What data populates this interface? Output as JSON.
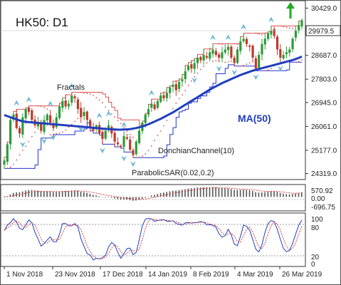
{
  "chart_data": {
    "type": "candlestick",
    "title": "HK50: D1",
    "colors": {
      "up": "#2e9b3a",
      "down": "#c0392b",
      "ma": "#1f3fbf",
      "donchian": "#2233cc",
      "sar": "#e05050",
      "fractal": "#6fb8d8",
      "macd": "#555555",
      "signal": "#d04040",
      "stoch_k": "#1f3fbf",
      "stoch_d": "#d04040",
      "price_box": "#ffffff"
    },
    "x_ticks": [
      "1 Nov 2018",
      "23 Nov 2018",
      "17 Dec 2018",
      "14 Jan 2019",
      "8 Feb 2019",
      "4 Mar 2019",
      "26 Mar 2019"
    ],
    "y_ticks": [
      30429.0,
      29571.0,
      28687.0,
      27803.0,
      26945.0,
      26061.0,
      25177.0,
      24319.0
    ],
    "ylim": [
      24150,
      30650
    ],
    "current_price": 29979.5,
    "current_price_label": "29979.5",
    "annotations": {
      "fractals": "Fractals",
      "donchian": "DonchianChannel(10)",
      "sar": "ParabolicSAR(0.02,0.2)",
      "ma": "MA(50)"
    },
    "macd_ticks": [
      "570.92",
      "0.00",
      "-696.75"
    ],
    "macd_ylim": [
      -800,
      700
    ],
    "stoch_ticks": [
      "100",
      "80",
      "20",
      "0"
    ],
    "stoch_ylim": [
      0,
      100
    ],
    "close": [
      24800,
      25400,
      26300,
      26500,
      26000,
      25800,
      26400,
      26700,
      26600,
      26300,
      26100,
      26200,
      25900,
      26300,
      26500,
      26200,
      26000,
      26400,
      26800,
      27000,
      26800,
      26900,
      27200,
      27100,
      26700,
      26400,
      26600,
      26300,
      26000,
      25900,
      26100,
      25800,
      25600,
      25900,
      26100,
      25800,
      25500,
      25400,
      25300,
      25700,
      25600,
      25200,
      25000,
      25500,
      25900,
      26200,
      26500,
      26700,
      26900,
      26700,
      27000,
      27200,
      27100,
      27300,
      27500,
      27600,
      27400,
      27700,
      27800,
      28100,
      28300,
      28200,
      28400,
      28600,
      28500,
      28700,
      28600,
      28800,
      28900,
      28700,
      28600,
      28800,
      28900,
      29000,
      28600,
      28400,
      28900,
      29200,
      29300,
      29100,
      29000,
      28600,
      28200,
      28700,
      29100,
      29300,
      29500,
      29600,
      29400,
      28900,
      28600,
      28700,
      28800,
      28900,
      29300,
      29600,
      29800,
      29979.5
    ],
    "ma50": [
      26480,
      26440,
      26400,
      26360,
      26320,
      26280,
      26250,
      26230,
      26220,
      26210,
      26200,
      26190,
      26180,
      26170,
      26160,
      26150,
      26140,
      26130,
      26120,
      26110,
      26100,
      26090,
      26080,
      26070,
      26060,
      26050,
      26040,
      26030,
      26020,
      26010,
      26000,
      25990,
      25980,
      25970,
      25960,
      25950,
      25950,
      25940,
      25940,
      25950,
      25950,
      25960,
      25980,
      26000,
      26030,
      26060,
      26100,
      26140,
      26190,
      26240,
      26290,
      26340,
      26400,
      26460,
      26520,
      26580,
      26650,
      26720,
      26790,
      26860,
      26930,
      27000,
      27070,
      27140,
      27210,
      27280,
      27350,
      27420,
      27480,
      27540,
      27600,
      27660,
      27710,
      27760,
      27810,
      27860,
      27910,
      27960,
      28000,
      28040,
      28080,
      28120,
      28150,
      28180,
      28210,
      28240,
      28270,
      28300,
      28330,
      28360,
      28390,
      28420,
      28450,
      28480,
      28510,
      28550,
      28590,
      28640
    ]
  }
}
